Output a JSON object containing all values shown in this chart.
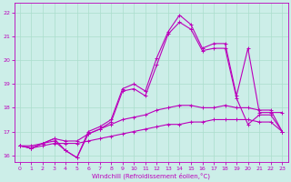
{
  "xlabel": "Windchill (Refroidissement éolien,°C)",
  "bg_color": "#cceee8",
  "grid_color": "#aaddcc",
  "line_color": "#bb00bb",
  "xlim": [
    -0.5,
    23.5
  ],
  "ylim": [
    15.7,
    22.4
  ],
  "xticks": [
    0,
    1,
    2,
    3,
    4,
    5,
    6,
    7,
    8,
    9,
    10,
    11,
    12,
    13,
    14,
    15,
    16,
    17,
    18,
    19,
    20,
    21,
    22,
    23
  ],
  "yticks": [
    16,
    17,
    18,
    19,
    20,
    21,
    22
  ],
  "line1_x": [
    0,
    1,
    2,
    3,
    4,
    5,
    6,
    7,
    8,
    9,
    10,
    11,
    12,
    13,
    14,
    15,
    16,
    17,
    18,
    19,
    20,
    21,
    22,
    23
  ],
  "line1_y": [
    16.4,
    16.3,
    16.5,
    16.7,
    16.2,
    15.9,
    17.0,
    17.2,
    17.5,
    18.8,
    19.0,
    18.7,
    20.1,
    21.2,
    21.9,
    21.5,
    20.5,
    20.7,
    20.7,
    18.5,
    20.5,
    17.8,
    17.8,
    17.8
  ],
  "line2_x": [
    0,
    1,
    2,
    3,
    4,
    5,
    6,
    7,
    8,
    9,
    10,
    11,
    12,
    13,
    14,
    15,
    16,
    17,
    18,
    19,
    20,
    21,
    22,
    23
  ],
  "line2_y": [
    16.4,
    16.3,
    16.5,
    16.6,
    16.2,
    15.9,
    16.9,
    17.1,
    17.4,
    18.7,
    18.8,
    18.5,
    19.8,
    21.1,
    21.6,
    21.3,
    20.4,
    20.5,
    20.5,
    18.4,
    17.3,
    17.7,
    17.7,
    17.0
  ],
  "line3_x": [
    0,
    1,
    2,
    3,
    4,
    5,
    6,
    7,
    8,
    9,
    10,
    11,
    12,
    13,
    14,
    15,
    16,
    17,
    18,
    19,
    20,
    21,
    22,
    23
  ],
  "line3_y": [
    16.4,
    16.4,
    16.5,
    16.7,
    16.6,
    16.6,
    16.9,
    17.1,
    17.3,
    17.5,
    17.6,
    17.7,
    17.9,
    18.0,
    18.1,
    18.1,
    18.0,
    18.0,
    18.1,
    18.0,
    18.0,
    17.9,
    17.9,
    17.0
  ],
  "line4_x": [
    0,
    1,
    2,
    3,
    4,
    5,
    6,
    7,
    8,
    9,
    10,
    11,
    12,
    13,
    14,
    15,
    16,
    17,
    18,
    19,
    20,
    21,
    22,
    23
  ],
  "line4_y": [
    16.4,
    16.3,
    16.4,
    16.5,
    16.5,
    16.5,
    16.6,
    16.7,
    16.8,
    16.9,
    17.0,
    17.1,
    17.2,
    17.3,
    17.3,
    17.4,
    17.4,
    17.5,
    17.5,
    17.5,
    17.5,
    17.4,
    17.4,
    17.0
  ]
}
